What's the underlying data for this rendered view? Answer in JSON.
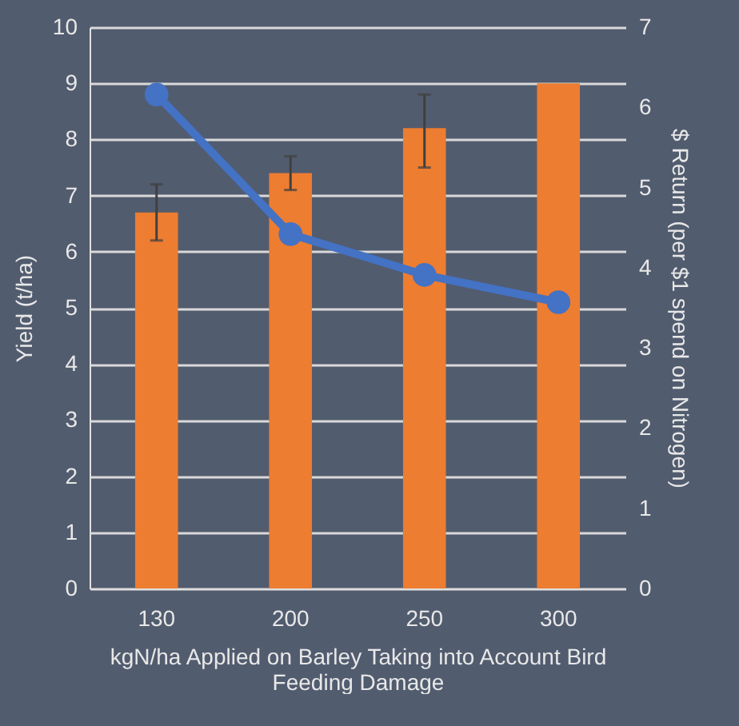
{
  "chart_data": {
    "type": "bar",
    "xlabel": "kgN/ha Applied on Barley Taking into Account Bird Feeding Damage",
    "ylabel": "Yield (t/ha)",
    "y2label": "$ Return (per $1 spend on Nitrogen)",
    "categories": [
      "130",
      "200",
      "250",
      "300"
    ],
    "series": [
      {
        "color": "#ed7d31",
        "values": [
          6.7,
          7.4,
          8.2,
          9.0
        ],
        "errors": [
          [
            6.2,
            7.2
          ],
          [
            7.1,
            7.7
          ],
          [
            7.5,
            8.8
          ],
          null
        ]
      },
      {
        "type": "line",
        "axis": "y2",
        "color": "#4472c4",
        "values": [
          6.16,
          4.42,
          3.91,
          3.57
        ],
        "marker": "circle",
        "line_style": "solid"
      }
    ],
    "ylim": [
      0,
      10
    ],
    "yticks": [
      0,
      1,
      2,
      3,
      4,
      5,
      6,
      7,
      8,
      9,
      10
    ],
    "y2lim": [
      0,
      7
    ],
    "y2ticks": [
      0,
      1,
      2,
      3,
      4,
      5,
      6,
      7
    ],
    "grid": "y"
  }
}
